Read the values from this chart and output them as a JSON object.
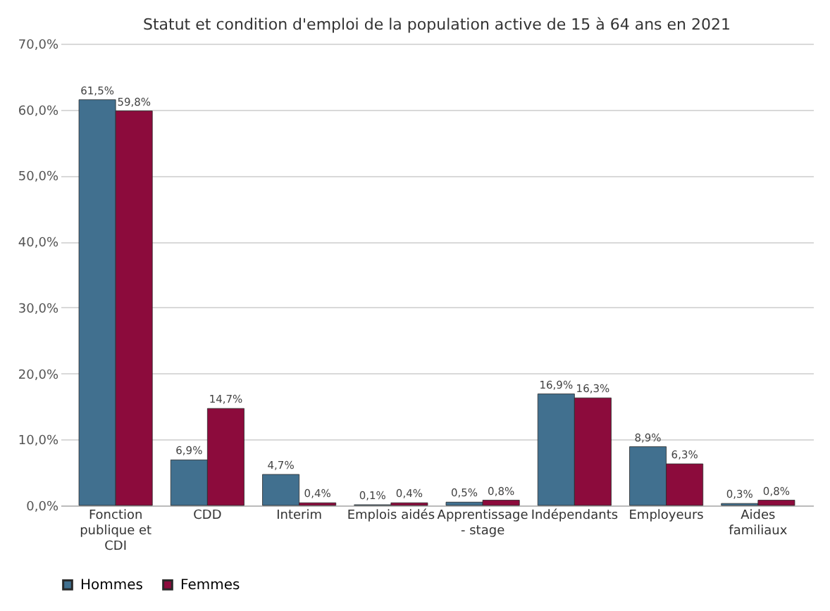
{
  "chart_data": {
    "type": "bar",
    "title": "Statut et condition d'emploi de la population active de 15 à 64 ans en 2021",
    "categories": [
      "Fonction publique et CDI",
      "CDD",
      "Interim",
      "Emplois aidés",
      "Apprentissage - stage",
      "Indépendants",
      "Employeurs",
      "Aides familiaux"
    ],
    "series": [
      {
        "name": "Hommes",
        "color": "#41708f",
        "values": [
          61.5,
          6.9,
          4.7,
          0.1,
          0.5,
          16.9,
          8.9,
          0.3
        ],
        "value_labels": [
          "61,5%",
          "6,9%",
          "4,7%",
          "0,1%",
          "0,5%",
          "16,9%",
          "8,9%",
          "0,3%"
        ]
      },
      {
        "name": "Femmes",
        "color": "#8c0b3c",
        "values": [
          59.8,
          14.7,
          0.4,
          0.4,
          0.8,
          16.3,
          6.3,
          0.8
        ],
        "value_labels": [
          "59,8%",
          "14,7%",
          "0,4%",
          "0,4%",
          "0,8%",
          "16,3%",
          "6,3%",
          "0,8%"
        ]
      }
    ],
    "ylim": [
      0,
      70
    ],
    "yticks": [
      {
        "value": 0,
        "label": "0,0%"
      },
      {
        "value": 10,
        "label": "10,0%"
      },
      {
        "value": 20,
        "label": "20,0%"
      },
      {
        "value": 30,
        "label": "30,0%"
      },
      {
        "value": 40,
        "label": "40,0%"
      },
      {
        "value": 50,
        "label": "50,0%"
      },
      {
        "value": 60,
        "label": "60,0%"
      },
      {
        "value": 70,
        "label": "70,0%"
      }
    ],
    "grid": "y",
    "legend": "bottom"
  }
}
